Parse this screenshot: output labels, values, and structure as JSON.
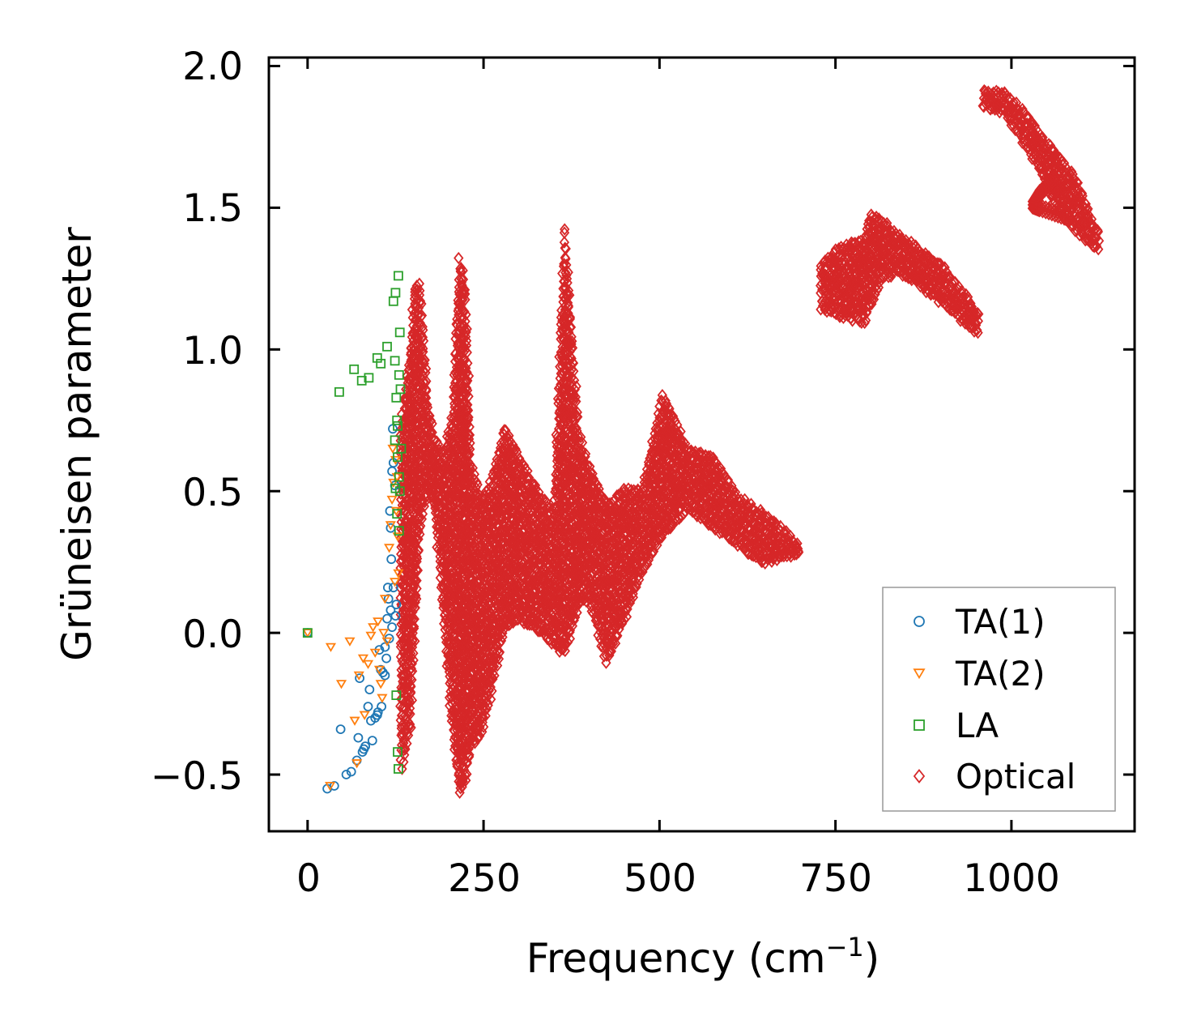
{
  "chart_data": {
    "type": "scatter",
    "xlabel_main": "Frequency (cm",
    "xlabel_sup": "−1",
    "xlabel_close": ")",
    "ylabel": "Grüneisen parameter",
    "xlim": [
      -55,
      1175
    ],
    "ylim": [
      -0.7,
      2.03
    ],
    "xticks": [
      0,
      250,
      500,
      750,
      1000
    ],
    "xtick_labels": [
      "0",
      "250",
      "500",
      "750",
      "1000"
    ],
    "yticks": [
      -0.5,
      0.0,
      0.5,
      1.0,
      1.5,
      2.0
    ],
    "ytick_labels": [
      "−0.5",
      "0.0",
      "0.5",
      "1.0",
      "1.5",
      "2.0"
    ],
    "grid": false,
    "legend_position": "lower-right",
    "series": [
      {
        "name": "TA(1)",
        "marker": "circle",
        "color": "#1f77b4",
        "points": [
          [
            0,
            0
          ],
          [
            28,
            -0.55
          ],
          [
            38,
            -0.54
          ],
          [
            47,
            -0.34
          ],
          [
            55,
            -0.5
          ],
          [
            62,
            -0.49
          ],
          [
            70,
            -0.45
          ],
          [
            72,
            -0.37
          ],
          [
            74,
            -0.16
          ],
          [
            78,
            -0.42
          ],
          [
            80,
            -0.41
          ],
          [
            82,
            -0.4
          ],
          [
            86,
            -0.26
          ],
          [
            88,
            -0.2
          ],
          [
            90,
            -0.31
          ],
          [
            92,
            -0.38
          ],
          [
            96,
            -0.3
          ],
          [
            99,
            -0.29
          ],
          [
            100,
            -0.28
          ],
          [
            102,
            -0.06
          ],
          [
            104,
            -0.13
          ],
          [
            105,
            -0.26
          ],
          [
            107,
            -0.14
          ],
          [
            110,
            -0.15
          ],
          [
            110,
            -0.05
          ],
          [
            112,
            -0.09
          ],
          [
            113,
            0.05
          ],
          [
            114,
            0.16
          ],
          [
            115,
            0.12
          ],
          [
            116,
            -0.02
          ],
          [
            117,
            0.43
          ],
          [
            118,
            0.37
          ],
          [
            118,
            0.08
          ],
          [
            119,
            0.26
          ],
          [
            120,
            0.57
          ],
          [
            120,
            0.02
          ],
          [
            121,
            0.72
          ],
          [
            122,
            0.6
          ],
          [
            122,
            0.16
          ],
          [
            124,
            0.52
          ],
          [
            125,
            0.06
          ],
          [
            126,
            0.1
          ]
        ]
      },
      {
        "name": "TA(2)",
        "marker": "triangle-down",
        "color": "#ff7f0e",
        "points": [
          [
            0,
            0
          ],
          [
            32,
            -0.54
          ],
          [
            33,
            -0.05
          ],
          [
            48,
            -0.18
          ],
          [
            60,
            -0.03
          ],
          [
            67,
            -0.31
          ],
          [
            70,
            -0.46
          ],
          [
            73,
            -0.15
          ],
          [
            79,
            -0.09
          ],
          [
            81,
            -0.29
          ],
          [
            86,
            -0.11
          ],
          [
            90,
            -0.01
          ],
          [
            93,
            0.02
          ],
          [
            96,
            -0.07
          ],
          [
            100,
            0.04
          ],
          [
            102,
            -0.13
          ],
          [
            104,
            -0.18
          ],
          [
            106,
            -0.23
          ],
          [
            108,
            0.0
          ],
          [
            110,
            0.12
          ],
          [
            113,
            -0.03
          ],
          [
            116,
            0.3
          ],
          [
            118,
            0.38
          ],
          [
            120,
            0.47
          ],
          [
            121,
            0.65
          ],
          [
            122,
            0.53
          ],
          [
            124,
            0.18
          ],
          [
            125,
            0.61
          ],
          [
            126,
            0.43
          ],
          [
            127,
            0.55
          ],
          [
            128,
            0.34
          ],
          [
            129,
            0.21
          ]
        ]
      },
      {
        "name": "LA",
        "marker": "square",
        "color": "#2ca02c",
        "points": [
          [
            0,
            0
          ],
          [
            45,
            0.85
          ],
          [
            66,
            0.93
          ],
          [
            77,
            0.89
          ],
          [
            87,
            0.9
          ],
          [
            99,
            0.97
          ],
          [
            104,
            0.95
          ],
          [
            113,
            1.01
          ],
          [
            122,
            1.17
          ],
          [
            124,
            0.96
          ],
          [
            125,
            1.2
          ],
          [
            126,
            0.83
          ],
          [
            127,
            0.75
          ],
          [
            128,
            0.73
          ],
          [
            129,
            1.26
          ],
          [
            130,
            0.91
          ],
          [
            131,
            1.06
          ],
          [
            132,
            0.86
          ],
          [
            130,
            0.55
          ],
          [
            128,
            0.62
          ],
          [
            127,
            0.42
          ],
          [
            125,
            0.51
          ],
          [
            124,
            0.68
          ],
          [
            126,
            -0.22
          ],
          [
            128,
            -0.42
          ],
          [
            129,
            -0.48
          ],
          [
            130,
            0.36
          ],
          [
            131,
            0.5
          ],
          [
            133,
            0.65
          ]
        ]
      }
    ],
    "optical_envelope": [
      {
        "x": [
          133,
          146,
          152,
          158,
          165,
          172,
          180,
          192,
          205,
          216,
          224,
          232,
          248,
          262,
          280,
          300,
          325,
          350,
          365,
          385,
          400,
          425,
          450,
          475,
          505,
          540,
          575,
          610,
          645,
          675,
          700
        ],
        "ylo": [
          -0.47,
          -0.34,
          -0.02,
          0.3,
          0.45,
          0.5,
          0.44,
          0.1,
          -0.32,
          -0.57,
          -0.52,
          -0.4,
          -0.35,
          -0.2,
          0.02,
          0.05,
          0.02,
          -0.04,
          -0.07,
          0.1,
          0.12,
          -0.1,
          0.05,
          0.22,
          0.35,
          0.44,
          0.38,
          0.32,
          0.25,
          0.27,
          0.28
        ],
        "yhi": [
          0.72,
          1.0,
          1.2,
          1.24,
          1.05,
          0.8,
          0.68,
          0.62,
          0.75,
          1.32,
          1.22,
          0.6,
          0.45,
          0.55,
          0.72,
          0.62,
          0.5,
          0.42,
          1.43,
          0.7,
          0.58,
          0.45,
          0.5,
          0.5,
          0.84,
          0.64,
          0.62,
          0.48,
          0.42,
          0.36,
          0.3
        ]
      },
      {
        "x": [
          730,
          760,
          790,
          800,
          815,
          840,
          875,
          905,
          930,
          955
        ],
        "ylo": [
          1.15,
          1.12,
          1.1,
          1.16,
          1.25,
          1.28,
          1.22,
          1.16,
          1.1,
          1.06
        ],
        "yhi": [
          1.3,
          1.36,
          1.38,
          1.47,
          1.45,
          1.4,
          1.34,
          1.28,
          1.2,
          1.12
        ]
      },
      {
        "x": [
          960,
          990,
          1030,
          1050,
          1060,
          1085,
          1100,
          1115,
          1125
        ],
        "ylo": [
          1.86,
          1.84,
          1.68,
          1.6,
          1.52,
          1.44,
          1.4,
          1.37,
          1.36
        ],
        "yhi": [
          1.91,
          1.9,
          1.8,
          1.72,
          1.7,
          1.62,
          1.55,
          1.45,
          1.4
        ]
      }
    ],
    "optical_hook": {
      "x": [
        1060,
        1040,
        1030,
        1040,
        1075
      ],
      "y": [
        1.6,
        1.55,
        1.51,
        1.5,
        1.47
      ]
    },
    "optical_name": "Optical",
    "optical_marker": "diamond",
    "optical_color": "#d62728"
  }
}
